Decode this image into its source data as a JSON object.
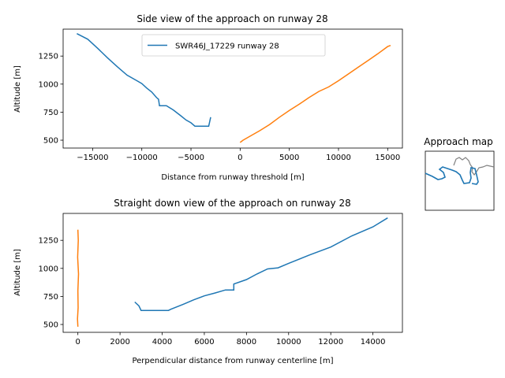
{
  "colors": {
    "series1": "#1f77b4",
    "series2": "#ff7f0e",
    "map_outline": "#808080"
  },
  "chart_data": [
    {
      "type": "line",
      "title": "Side view of the approach on runway 28",
      "xlabel": "Distance from runway threshold [m]",
      "ylabel": "Altitude [m]",
      "xlim": [
        -18000,
        16500
      ],
      "ylim": [
        430,
        1490
      ],
      "xticks": [
        -15000,
        -10000,
        -5000,
        0,
        5000,
        10000,
        15000
      ],
      "yticks": [
        500,
        750,
        1000,
        1250
      ],
      "legend": {
        "position": "top-center",
        "entries": [
          "SWR46J_17229 runway 28"
        ]
      },
      "series": [
        {
          "name": "SWR46J_17229 runway 28",
          "color": "#1f77b4",
          "x": [
            -16600,
            -15500,
            -14500,
            -13500,
            -12500,
            -11500,
            -10500,
            -10000,
            -9500,
            -9000,
            -8500,
            -8300,
            -8200,
            -7500,
            -6800,
            -6000,
            -5500,
            -5000,
            -4600,
            -3500,
            -3200,
            -3000
          ],
          "y": [
            1450,
            1400,
            1320,
            1235,
            1155,
            1080,
            1030,
            1005,
            965,
            930,
            880,
            865,
            808,
            808,
            770,
            715,
            680,
            655,
            625,
            625,
            625,
            705
          ]
        },
        {
          "color": "#ff7f0e",
          "x": [
            0,
            300,
            1000,
            2000,
            3000,
            4000,
            5000,
            6000,
            7000,
            8000,
            9000,
            10000,
            11000,
            12000,
            13000,
            14000,
            15000,
            15300
          ],
          "y": [
            480,
            500,
            535,
            585,
            640,
            705,
            765,
            820,
            880,
            935,
            975,
            1030,
            1090,
            1150,
            1210,
            1270,
            1335,
            1345
          ]
        }
      ]
    },
    {
      "type": "line",
      "title": "Straight down view of the approach on runway 28",
      "xlabel": "Perpendicular distance from runway centerline [m]",
      "ylabel": "Altitude [m]",
      "xlim": [
        -700,
        15400
      ],
      "ylim": [
        430,
        1490
      ],
      "xticks": [
        0,
        2000,
        4000,
        6000,
        8000,
        10000,
        12000,
        14000
      ],
      "yticks": [
        500,
        750,
        1000,
        1250
      ],
      "series": [
        {
          "color": "#1f77b4",
          "x": [
            2700,
            2900,
            3000,
            3500,
            4000,
            4300,
            4400,
            5000,
            5500,
            6000,
            6500,
            7000,
            7400,
            7400,
            8000,
            8500,
            9000,
            9500,
            10000,
            11000,
            12000,
            13000,
            14000,
            14700
          ],
          "y": [
            700,
            665,
            625,
            625,
            625,
            625,
            635,
            680,
            720,
            755,
            780,
            808,
            808,
            860,
            900,
            950,
            995,
            1005,
            1045,
            1120,
            1190,
            1290,
            1370,
            1450
          ]
        },
        {
          "color": "#ff7f0e",
          "x": [
            0,
            20,
            -10,
            30,
            0,
            10,
            -20,
            0
          ],
          "y": [
            1345,
            1250,
            1100,
            950,
            800,
            650,
            550,
            480
          ]
        }
      ]
    }
  ],
  "inset": {
    "title": "Approach map"
  }
}
